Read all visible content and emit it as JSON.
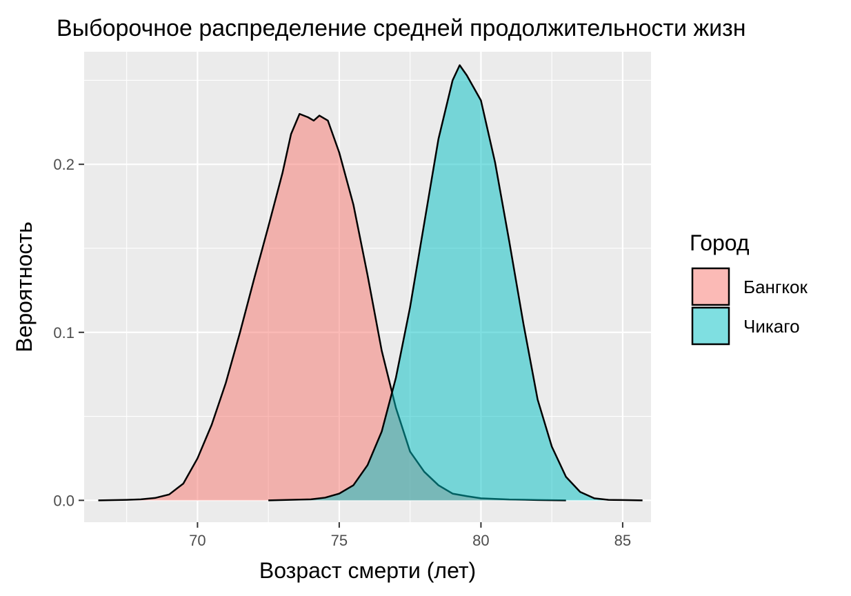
{
  "chart_data": {
    "type": "area",
    "title": "Выборочное распределение средней продолжительности жизн",
    "xlabel": "Возраст смерти (лет)",
    "ylabel": "Вероятность",
    "xlim": [
      66,
      86
    ],
    "ylim": [
      -0.013,
      0.267
    ],
    "x_ticks": [
      70,
      75,
      80,
      85
    ],
    "x_tick_labels": [
      "70",
      "75",
      "80",
      "85"
    ],
    "y_ticks": [
      0.0,
      0.1,
      0.2
    ],
    "y_tick_labels": [
      "0.0",
      "0.1",
      "0.2"
    ],
    "grid": true,
    "legend": {
      "title": "Город",
      "position": "right"
    },
    "series": [
      {
        "name": "Бангкок",
        "color": "#f8766d",
        "points": [
          [
            66.5,
            0.0
          ],
          [
            67.5,
            0.0003
          ],
          [
            68.0,
            0.0006
          ],
          [
            68.5,
            0.0014
          ],
          [
            69.0,
            0.0035
          ],
          [
            69.5,
            0.01
          ],
          [
            70.0,
            0.025
          ],
          [
            70.5,
            0.045
          ],
          [
            71.0,
            0.07
          ],
          [
            71.5,
            0.1
          ],
          [
            72.0,
            0.132
          ],
          [
            72.5,
            0.163
          ],
          [
            73.0,
            0.195
          ],
          [
            73.3,
            0.218
          ],
          [
            73.6,
            0.23
          ],
          [
            73.9,
            0.228
          ],
          [
            74.1,
            0.226
          ],
          [
            74.3,
            0.229
          ],
          [
            74.6,
            0.226
          ],
          [
            75.0,
            0.207
          ],
          [
            75.5,
            0.176
          ],
          [
            76.0,
            0.134
          ],
          [
            76.5,
            0.089
          ],
          [
            77.0,
            0.055
          ],
          [
            77.5,
            0.029
          ],
          [
            78.0,
            0.017
          ],
          [
            78.5,
            0.009
          ],
          [
            79.0,
            0.004
          ],
          [
            79.5,
            0.0025
          ],
          [
            80.0,
            0.0012
          ],
          [
            81.0,
            0.0005
          ],
          [
            82.0,
            0.0002
          ],
          [
            83.0,
            0.0
          ]
        ]
      },
      {
        "name": "Чикаго",
        "color": "#00bfc4",
        "points": [
          [
            72.5,
            0.0
          ],
          [
            74.0,
            0.0006
          ],
          [
            74.5,
            0.0016
          ],
          [
            75.0,
            0.004
          ],
          [
            75.5,
            0.009
          ],
          [
            76.0,
            0.021
          ],
          [
            76.5,
            0.041
          ],
          [
            77.0,
            0.073
          ],
          [
            77.5,
            0.115
          ],
          [
            78.0,
            0.165
          ],
          [
            78.5,
            0.215
          ],
          [
            79.0,
            0.25
          ],
          [
            79.25,
            0.259
          ],
          [
            79.5,
            0.253
          ],
          [
            80.0,
            0.238
          ],
          [
            80.5,
            0.201
          ],
          [
            81.0,
            0.154
          ],
          [
            81.5,
            0.105
          ],
          [
            82.0,
            0.06
          ],
          [
            82.5,
            0.032
          ],
          [
            83.0,
            0.014
          ],
          [
            83.5,
            0.005
          ],
          [
            84.0,
            0.0012
          ],
          [
            84.5,
            0.0003
          ],
          [
            85.0,
            0.0002
          ],
          [
            85.7,
            0.0
          ]
        ]
      }
    ]
  }
}
